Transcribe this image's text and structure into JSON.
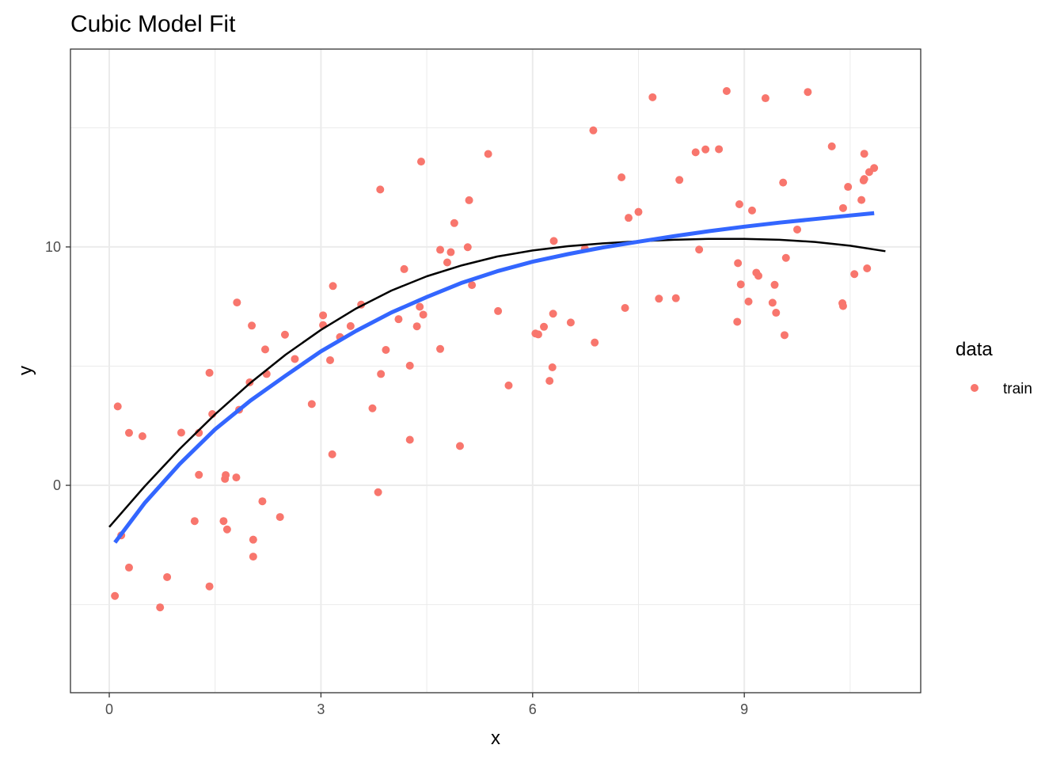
{
  "chart_data": {
    "type": "scatter",
    "title": "Cubic Model Fit",
    "xlabel": "x",
    "ylabel": "y",
    "xlim": [
      -0.55,
      11.5
    ],
    "ylim": [
      -8.7,
      18.3
    ],
    "x_ticks": [
      0,
      3,
      6,
      9
    ],
    "x_tick_labels": [
      "0",
      "3",
      "6",
      "9"
    ],
    "x_minor_ticks": [
      1.5,
      4.5,
      7.5,
      10.5
    ],
    "y_ticks": [
      0,
      10
    ],
    "y_tick_labels": [
      "0",
      "10"
    ],
    "y_minor_ticks": [
      -5,
      5,
      15
    ],
    "grid": true,
    "legend": {
      "title": "data",
      "position": "right",
      "entries": [
        {
          "label": "train",
          "color": "#F8766D"
        }
      ]
    },
    "colors": {
      "points": "#F8766D",
      "fit_line": "#000000",
      "smooth_line": "#3366FF",
      "grid": "#EBEBEB",
      "panel_border": "#333333"
    },
    "series": [
      {
        "type": "scatter",
        "name": "train",
        "points": [
          [
            0.08,
            -4.64
          ],
          [
            0.12,
            3.31
          ],
          [
            0.17,
            -2.1
          ],
          [
            0.28,
            2.2
          ],
          [
            0.28,
            -3.45
          ],
          [
            0.47,
            2.06
          ],
          [
            0.72,
            -5.12
          ],
          [
            0.82,
            -3.85
          ],
          [
            1.02,
            2.21
          ],
          [
            1.21,
            -1.5
          ],
          [
            1.27,
            2.2
          ],
          [
            1.27,
            0.44
          ],
          [
            1.42,
            4.72
          ],
          [
            1.42,
            -4.24
          ],
          [
            1.46,
            2.99
          ],
          [
            1.62,
            -1.5
          ],
          [
            1.64,
            0.27
          ],
          [
            1.65,
            0.43
          ],
          [
            1.67,
            -1.85
          ],
          [
            1.8,
            0.33
          ],
          [
            1.81,
            7.67
          ],
          [
            1.84,
            3.17
          ],
          [
            1.99,
            4.32
          ],
          [
            2.02,
            6.7
          ],
          [
            2.04,
            -2.28
          ],
          [
            2.04,
            -2.99
          ],
          [
            2.17,
            -0.67
          ],
          [
            2.21,
            5.7
          ],
          [
            2.23,
            4.67
          ],
          [
            2.42,
            -1.33
          ],
          [
            2.49,
            6.32
          ],
          [
            2.63,
            5.3
          ],
          [
            2.87,
            3.41
          ],
          [
            3.03,
            7.13
          ],
          [
            3.03,
            6.72
          ],
          [
            3.13,
            5.25
          ],
          [
            3.16,
            1.3
          ],
          [
            3.17,
            8.36
          ],
          [
            3.27,
            6.22
          ],
          [
            3.42,
            6.68
          ],
          [
            3.57,
            7.58
          ],
          [
            3.73,
            3.23
          ],
          [
            3.81,
            -0.29
          ],
          [
            3.84,
            12.41
          ],
          [
            3.85,
            4.67
          ],
          [
            3.92,
            5.68
          ],
          [
            4.1,
            6.97
          ],
          [
            4.18,
            9.07
          ],
          [
            4.26,
            5.02
          ],
          [
            4.26,
            1.91
          ],
          [
            4.36,
            6.67
          ],
          [
            4.4,
            7.49
          ],
          [
            4.42,
            13.58
          ],
          [
            4.45,
            7.16
          ],
          [
            4.69,
            5.72
          ],
          [
            4.69,
            9.88
          ],
          [
            4.79,
            9.35
          ],
          [
            4.84,
            9.78
          ],
          [
            4.89,
            11.0
          ],
          [
            4.97,
            1.65
          ],
          [
            5.08,
            9.99
          ],
          [
            5.1,
            11.96
          ],
          [
            5.14,
            8.4
          ],
          [
            5.37,
            13.9
          ],
          [
            5.51,
            7.31
          ],
          [
            5.66,
            4.19
          ],
          [
            6.04,
            6.37
          ],
          [
            6.08,
            6.33
          ],
          [
            6.16,
            6.65
          ],
          [
            6.24,
            4.38
          ],
          [
            6.28,
            4.95
          ],
          [
            6.29,
            7.2
          ],
          [
            6.3,
            10.25
          ],
          [
            6.54,
            6.83
          ],
          [
            6.74,
            9.93
          ],
          [
            6.86,
            14.89
          ],
          [
            6.88,
            5.99
          ],
          [
            7.26,
            12.92
          ],
          [
            7.31,
            7.44
          ],
          [
            7.36,
            11.22
          ],
          [
            7.5,
            11.47
          ],
          [
            7.7,
            16.28
          ],
          [
            7.79,
            7.83
          ],
          [
            8.03,
            7.85
          ],
          [
            8.08,
            12.81
          ],
          [
            8.31,
            13.97
          ],
          [
            8.36,
            9.89
          ],
          [
            8.45,
            14.09
          ],
          [
            8.64,
            14.1
          ],
          [
            8.75,
            16.54
          ],
          [
            8.9,
            6.86
          ],
          [
            8.91,
            9.32
          ],
          [
            8.93,
            11.79
          ],
          [
            8.95,
            8.43
          ],
          [
            9.06,
            7.71
          ],
          [
            9.11,
            11.53
          ],
          [
            9.17,
            8.92
          ],
          [
            9.2,
            8.79
          ],
          [
            9.3,
            16.24
          ],
          [
            9.4,
            7.66
          ],
          [
            9.43,
            8.41
          ],
          [
            9.45,
            7.24
          ],
          [
            9.55,
            12.7
          ],
          [
            9.57,
            6.3
          ],
          [
            9.59,
            9.54
          ],
          [
            9.75,
            10.73
          ],
          [
            9.9,
            16.5
          ],
          [
            10.24,
            14.22
          ],
          [
            10.39,
            7.64
          ],
          [
            10.4,
            7.52
          ],
          [
            10.4,
            11.63
          ],
          [
            10.47,
            12.52
          ],
          [
            10.56,
            8.86
          ],
          [
            10.66,
            11.97
          ],
          [
            10.69,
            12.79
          ],
          [
            10.7,
            13.91
          ],
          [
            10.7,
            12.85
          ],
          [
            10.74,
            9.1
          ],
          [
            10.77,
            13.14
          ],
          [
            10.84,
            13.31
          ]
        ]
      },
      {
        "type": "line",
        "style": "fit",
        "x": [
          0.0,
          0.5,
          1.0,
          1.5,
          2.0,
          2.5,
          3.0,
          3.5,
          4.0,
          4.5,
          5.0,
          5.5,
          6.0,
          6.5,
          7.0,
          7.5,
          8.0,
          8.5,
          9.0,
          9.5,
          10.0,
          10.5,
          11.0
        ],
        "y": [
          -1.75,
          -0.05,
          1.53,
          2.98,
          4.3,
          5.48,
          6.52,
          7.42,
          8.17,
          8.77,
          9.23,
          9.6,
          9.85,
          10.03,
          10.15,
          10.24,
          10.3,
          10.34,
          10.34,
          10.3,
          10.21,
          10.05,
          9.82
        ]
      },
      {
        "type": "line",
        "style": "smooth",
        "x": [
          0.08,
          0.5,
          1.0,
          1.5,
          2.0,
          2.5,
          3.0,
          3.5,
          4.0,
          4.5,
          5.0,
          5.5,
          6.0,
          6.5,
          7.0,
          7.5,
          8.0,
          8.5,
          9.0,
          9.5,
          10.0,
          10.5,
          10.84
        ],
        "y": [
          -2.4,
          -0.75,
          0.9,
          2.35,
          3.55,
          4.6,
          5.62,
          6.48,
          7.25,
          7.9,
          8.5,
          8.98,
          9.38,
          9.7,
          9.98,
          10.22,
          10.45,
          10.66,
          10.85,
          11.02,
          11.17,
          11.32,
          11.42
        ]
      }
    ]
  }
}
